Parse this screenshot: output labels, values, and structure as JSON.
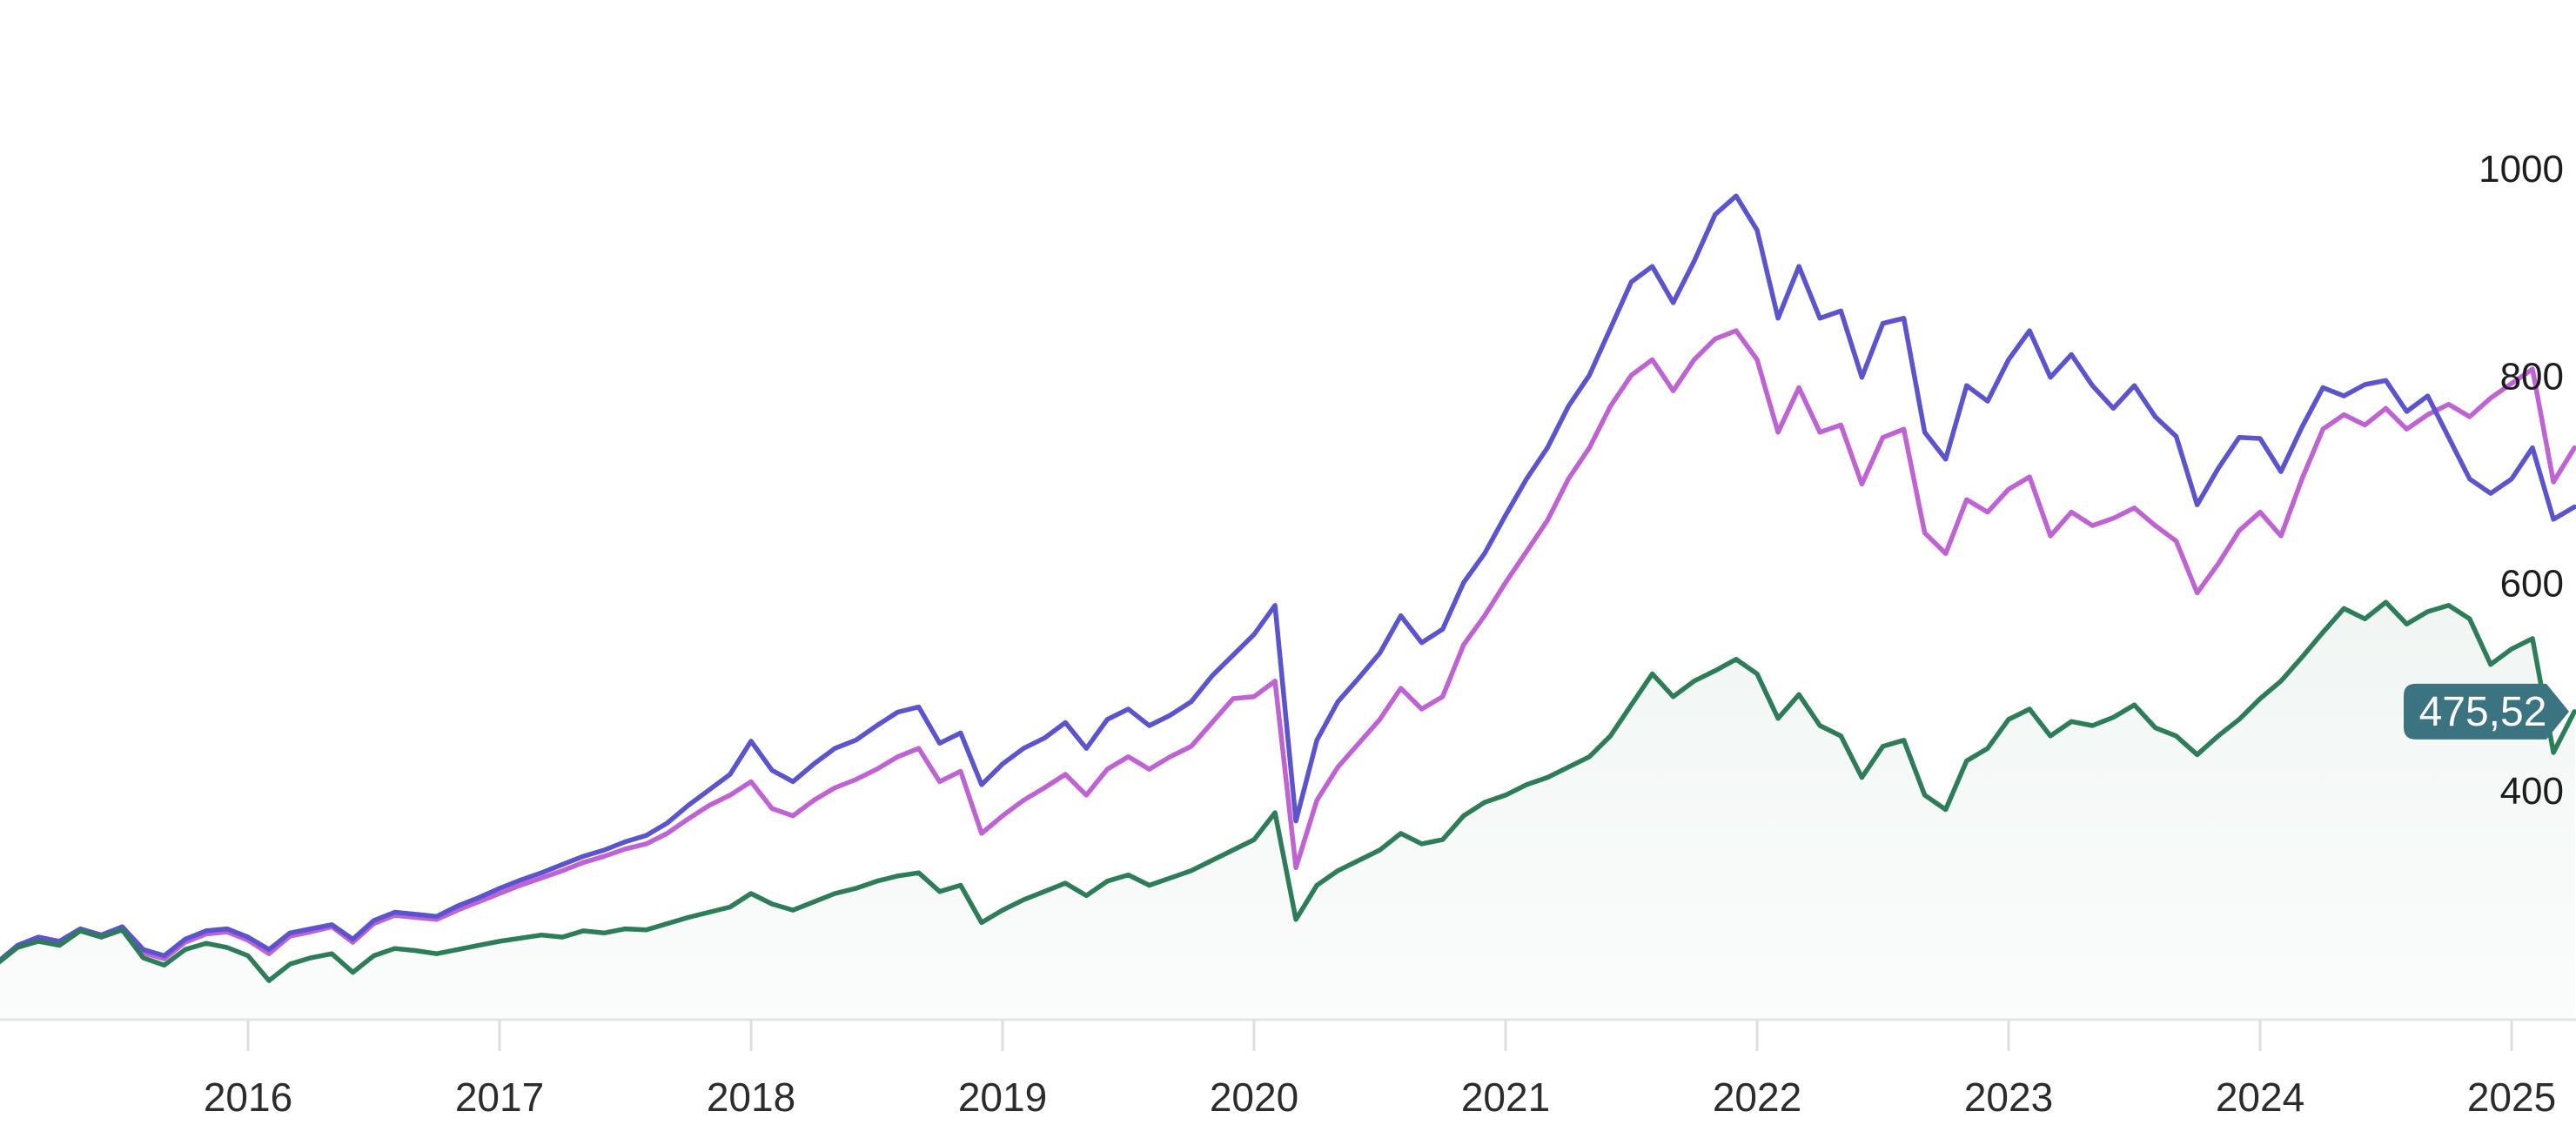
{
  "chart_data": {
    "type": "line",
    "title": "",
    "xlabel": "",
    "ylabel": "",
    "start_month": "2015-01",
    "end_month": "2025-04",
    "frequency": "monthly",
    "x_tick_labels": [
      "2016",
      "2017",
      "2018",
      "2019",
      "2020",
      "2021",
      "2022",
      "2023",
      "2024",
      "2025"
    ],
    "x_tick_month_indices": [
      12,
      24,
      36,
      48,
      60,
      72,
      84,
      96,
      108,
      120
    ],
    "y_axis_labels": [
      "1000",
      "800",
      "600",
      "400"
    ],
    "y_axis_values": [
      1000,
      800,
      600,
      400
    ],
    "ylim": [
      180,
      1020
    ],
    "grid": false,
    "legend": "none",
    "series": [
      {
        "name": "magenta",
        "color": "#BE62D4",
        "fill": false,
        "values": [
          233,
          249,
          256,
          252,
          264,
          258,
          266,
          243,
          237,
          253,
          261,
          263,
          255,
          242,
          259,
          263,
          268,
          253,
          271,
          279,
          277,
          275,
          284,
          292,
          300,
          308,
          315,
          322,
          330,
          336,
          343,
          348,
          358,
          372,
          385,
          395,
          408,
          382,
          375,
          390,
          402,
          410,
          420,
          432,
          440,
          408,
          418,
          358,
          375,
          390,
          402,
          415,
          395,
          420,
          432,
          420,
          432,
          442,
          465,
          488,
          490,
          505,
          325,
          390,
          422,
          445,
          468,
          498,
          478,
          490,
          540,
          568,
          600,
          630,
          660,
          700,
          730,
          770,
          800,
          815,
          785,
          815,
          835,
          843,
          815,
          745,
          788,
          745,
          752,
          695,
          740,
          748,
          648,
          628,
          680,
          668,
          690,
          702,
          645,
          668,
          655,
          662,
          672,
          655,
          640,
          590,
          618,
          650,
          668,
          645,
          700,
          748,
          762,
          752,
          768,
          748,
          762,
          772,
          760,
          778,
          792,
          806,
          697,
          730
        ]
      },
      {
        "name": "indigo",
        "color": "#5B54CE",
        "fill": false,
        "values": [
          233,
          250,
          258,
          254,
          266,
          260,
          268,
          246,
          240,
          256,
          264,
          266,
          258,
          246,
          262,
          266,
          270,
          256,
          274,
          282,
          280,
          278,
          288,
          296,
          305,
          313,
          320,
          328,
          336,
          342,
          350,
          356,
          368,
          385,
          400,
          415,
          447,
          419,
          408,
          425,
          440,
          448,
          462,
          475,
          480,
          445,
          455,
          405,
          425,
          440,
          450,
          465,
          440,
          468,
          478,
          462,
          472,
          485,
          510,
          530,
          550,
          578,
          370,
          448,
          485,
          508,
          532,
          568,
          542,
          555,
          600,
          628,
          665,
          700,
          730,
          770,
          800,
          845,
          890,
          905,
          870,
          910,
          955,
          973,
          940,
          855,
          905,
          855,
          862,
          798,
          850,
          855,
          745,
          719,
          790,
          775,
          815,
          843,
          798,
          820,
          790,
          768,
          790,
          760,
          741,
          675,
          710,
          740,
          739,
          707,
          750,
          788,
          780,
          791,
          795,
          765,
          780,
          740,
          700,
          686,
          700,
          730,
          661,
          673
        ]
      },
      {
        "name": "green",
        "color": "#2E7D59",
        "fill": true,
        "fill_color": "#2F7D5A",
        "values": [
          232,
          248,
          254,
          250,
          264,
          258,
          265,
          238,
          231,
          246,
          252,
          248,
          240,
          216,
          232,
          238,
          242,
          224,
          240,
          247,
          245,
          242,
          246,
          250,
          254,
          257,
          260,
          258,
          264,
          262,
          266,
          265,
          271,
          277,
          282,
          287,
          300,
          290,
          284,
          292,
          300,
          305,
          312,
          317,
          320,
          302,
          308,
          272,
          284,
          294,
          302,
          310,
          298,
          312,
          318,
          308,
          315,
          322,
          332,
          342,
          352,
          378,
          275,
          308,
          322,
          332,
          342,
          358,
          348,
          352,
          375,
          388,
          395,
          405,
          412,
          422,
          432,
          452,
          482,
          512,
          490,
          505,
          515,
          526,
          512,
          469,
          492,
          462,
          452,
          412,
          442,
          448,
          395,
          381,
          428,
          440,
          468,
          478,
          452,
          466,
          462,
          470,
          482,
          460,
          452,
          434,
          452,
          468,
          488,
          505,
          528,
          552,
          575,
          565,
          581,
          560,
          572,
          578,
          565,
          521,
          536,
          546,
          436,
          475.52
        ]
      }
    ],
    "last_price_badge": {
      "label": "475,52",
      "value": 475.52,
      "series": "green",
      "background_color": "#3B7380",
      "text_color": "#FFFFFF"
    },
    "axis_line_color": "#E4E4E4",
    "background_color": "#FFFFFF"
  }
}
